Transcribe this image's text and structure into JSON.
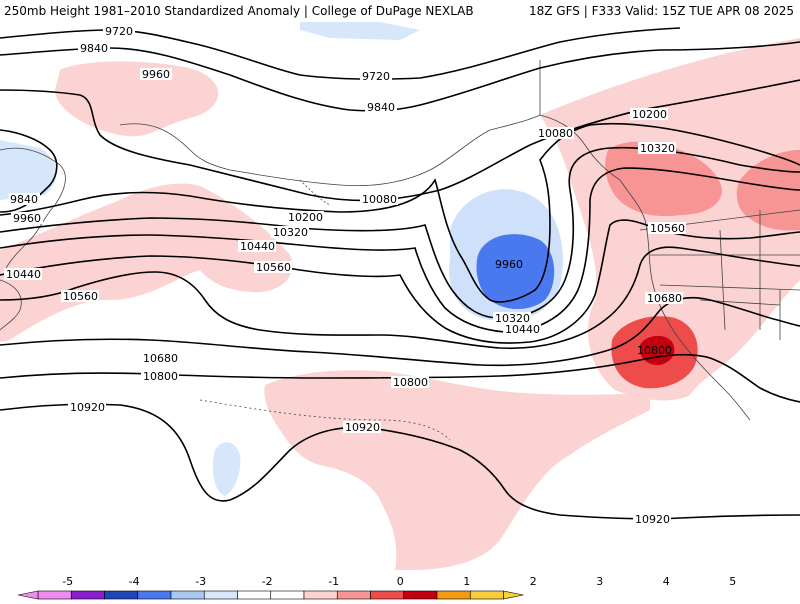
{
  "header": {
    "left_title": "250mb Height 1981–2010 Standardized Anomaly | College of DuPage NEXLAB",
    "right_title": "18Z GFS | F333 Valid: 15Z TUE APR 08 2025"
  },
  "map": {
    "contour_labels": {
      "c9720_a": "9720",
      "c9720_b": "9720",
      "c9840_a": "9840",
      "c9840_b": "9840",
      "c9840_c": "9840",
      "c9960_a": "9960",
      "c9960_b": "9960",
      "c9960_c": "9960",
      "c10080_a": "10080",
      "c10080_b": "10080",
      "c10200_a": "10200",
      "c10200_b": "10200",
      "c10320_a": "10320",
      "c10320_b": "10320",
      "c10320_c": "10320",
      "c10440_a": "10440",
      "c10440_b": "10440",
      "c10440_c": "10440",
      "c10560_a": "10560",
      "c10560_b": "10560",
      "c10560_c": "10560",
      "c10680_a": "10680",
      "c10680_b": "10680",
      "c10800_a": "10800",
      "c10800_b": "10800",
      "c10800_c": "10800",
      "c10920_a": "10920",
      "c10920_b": "10920",
      "c10920_c": "10920"
    }
  },
  "colorbar": {
    "ticks": [
      "-5",
      "-4",
      "-3",
      "-2",
      "-1",
      "0",
      "1",
      "2",
      "3",
      "4",
      "5"
    ],
    "colors": [
      "#f08cf0",
      "#8a1fd0",
      "#1f46b4",
      "#4a78ee",
      "#a9c9f3",
      "#d6e6fb",
      "#ffffff",
      "#ffffff",
      "#fcd3d3",
      "#f79494",
      "#ee4b4b",
      "#c3000e",
      "#f39a10",
      "#f8ce3a"
    ]
  }
}
